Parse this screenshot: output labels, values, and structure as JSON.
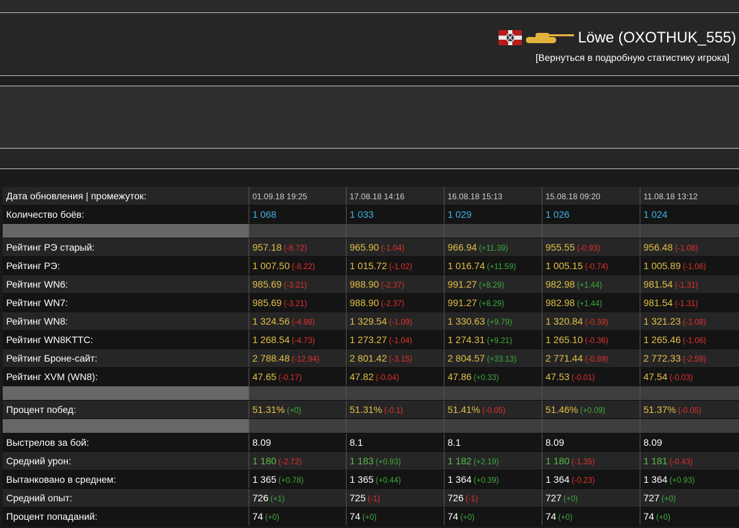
{
  "player": {
    "name": "Löwe (OXOTHUK_555)",
    "back_link": "[Вернуться в подробную статистику игрока]",
    "flag_icon": "clan-flag-icon",
    "tank_icon": "tank-icon",
    "tank_color": "#e3b23c"
  },
  "colors": {
    "blue": "#3fb3e8",
    "yellow": "#e2c046",
    "green": "#5cbc4a",
    "negative": "#e4302c",
    "positive": "#3daa3d"
  },
  "table": {
    "header_label": "Дата обновления | промежуток:",
    "dates": [
      "01.09.18 19:25",
      "17.08.18 14:16",
      "16.08.18 15:13",
      "15.08.18 09:20",
      "11.08.18 13:12"
    ],
    "battles": {
      "label": "Количество боёв:",
      "values": [
        "1 068",
        "1 033",
        "1 029",
        "1 026",
        "1 024"
      ]
    },
    "ratings": [
      {
        "label": "Рейтинг РЭ старый:",
        "cells": [
          {
            "v": "957.18",
            "d": "(-8.72)"
          },
          {
            "v": "965.90",
            "d": "(-1.04)"
          },
          {
            "v": "966.94",
            "d": "(+11.39)"
          },
          {
            "v": "955.55",
            "d": "(-0.93)"
          },
          {
            "v": "956.48",
            "d": "(-1.08)"
          }
        ]
      },
      {
        "label": "Рейтинг РЭ:",
        "cells": [
          {
            "v": "1 007.50",
            "d": "(-8.22)"
          },
          {
            "v": "1 015.72",
            "d": "(-1.02)"
          },
          {
            "v": "1 016.74",
            "d": "(+11.59)"
          },
          {
            "v": "1 005.15",
            "d": "(-0.74)"
          },
          {
            "v": "1 005.89",
            "d": "(-1.06)"
          }
        ]
      },
      {
        "label": "Рейтинг WN6:",
        "cells": [
          {
            "v": "985.69",
            "d": "(-3.21)"
          },
          {
            "v": "988.90",
            "d": "(-2.37)"
          },
          {
            "v": "991.27",
            "d": "(+8.29)"
          },
          {
            "v": "982.98",
            "d": "(+1.44)"
          },
          {
            "v": "981.54",
            "d": "(-1.31)"
          }
        ]
      },
      {
        "label": "Рейтинг WN7:",
        "cells": [
          {
            "v": "985.69",
            "d": "(-3.21)"
          },
          {
            "v": "988.90",
            "d": "(-2.37)"
          },
          {
            "v": "991.27",
            "d": "(+8.29)"
          },
          {
            "v": "982.98",
            "d": "(+1.44)"
          },
          {
            "v": "981.54",
            "d": "(-1.31)"
          }
        ]
      },
      {
        "label": "Рейтинг WN8:",
        "cells": [
          {
            "v": "1 324.56",
            "d": "(-4.98)"
          },
          {
            "v": "1 329.54",
            "d": "(-1.09)"
          },
          {
            "v": "1 330.63",
            "d": "(+9.79)"
          },
          {
            "v": "1 320.84",
            "d": "(-0.39)"
          },
          {
            "v": "1 321.23",
            "d": "(-1.08)"
          }
        ]
      },
      {
        "label": "Рейтинг WN8KTTC:",
        "cells": [
          {
            "v": "1 268.54",
            "d": "(-4.73)"
          },
          {
            "v": "1 273.27",
            "d": "(-1.04)"
          },
          {
            "v": "1 274.31",
            "d": "(+9.21)"
          },
          {
            "v": "1 265.10",
            "d": "(-0.36)"
          },
          {
            "v": "1 265.46",
            "d": "(-1.06)"
          }
        ]
      },
      {
        "label": "Рейтинг Броне-сайт:",
        "cells": [
          {
            "v": "2 788.48",
            "d": "(-12.94)"
          },
          {
            "v": "2 801.42",
            "d": "(-3.15)"
          },
          {
            "v": "2 804.57",
            "d": "(+33.13)"
          },
          {
            "v": "2 771.44",
            "d": "(-0.89)"
          },
          {
            "v": "2 772.33",
            "d": "(-2.59)"
          }
        ]
      },
      {
        "label": "Рейтинг XVM (WN8):",
        "cells": [
          {
            "v": "47.65",
            "d": "(-0.17)"
          },
          {
            "v": "47.82",
            "d": "(-0.04)"
          },
          {
            "v": "47.86",
            "d": "(+0.33)"
          },
          {
            "v": "47.53",
            "d": "(-0.01)"
          },
          {
            "v": "47.54",
            "d": "(-0.03)"
          }
        ]
      }
    ],
    "winrate": {
      "label": "Процент побед:",
      "cells": [
        {
          "v": "51.31%",
          "d": "(+0)"
        },
        {
          "v": "51.31%",
          "d": "(-0.1)"
        },
        {
          "v": "51.41%",
          "d": "(-0.05)"
        },
        {
          "v": "51.46%",
          "d": "(+0.09)"
        },
        {
          "v": "51.37%",
          "d": "(-0.05)"
        }
      ]
    },
    "shots": {
      "label": "Выстрелов за бой:",
      "values": [
        "8.09",
        "8.1",
        "8.1",
        "8.09",
        "8.09"
      ]
    },
    "damage": {
      "label": "Средний урон:",
      "cells": [
        {
          "v": "1 180",
          "d": "(-2.72)"
        },
        {
          "v": "1 183",
          "d": "(+0.93)"
        },
        {
          "v": "1 182",
          "d": "(+2.19)"
        },
        {
          "v": "1 180",
          "d": "(-1.35)"
        },
        {
          "v": "1 181",
          "d": "(-0.43)"
        }
      ]
    },
    "tanked": {
      "label": "Вытанковано в среднем:",
      "cells": [
        {
          "v": "1 365",
          "d": "(+0.78)"
        },
        {
          "v": "1 365",
          "d": "(+0.44)"
        },
        {
          "v": "1 364",
          "d": "(+0.39)"
        },
        {
          "v": "1 364",
          "d": "(-0.23)"
        },
        {
          "v": "1 364",
          "d": "(+0.93)"
        }
      ]
    },
    "xp": {
      "label": "Средний опыт:",
      "cells": [
        {
          "v": "726",
          "d": "(+1)"
        },
        {
          "v": "725",
          "d": "(-1)"
        },
        {
          "v": "726",
          "d": "(-1)"
        },
        {
          "v": "727",
          "d": "(+0)"
        },
        {
          "v": "727",
          "d": "(+0)"
        }
      ]
    },
    "hits": {
      "label": "Процент попаданий:",
      "cells": [
        {
          "v": "74",
          "d": "(+0)"
        },
        {
          "v": "74",
          "d": "(+0)"
        },
        {
          "v": "74",
          "d": "(+0)"
        },
        {
          "v": "74",
          "d": "(+0)"
        },
        {
          "v": "74",
          "d": "(+0)"
        }
      ]
    }
  }
}
